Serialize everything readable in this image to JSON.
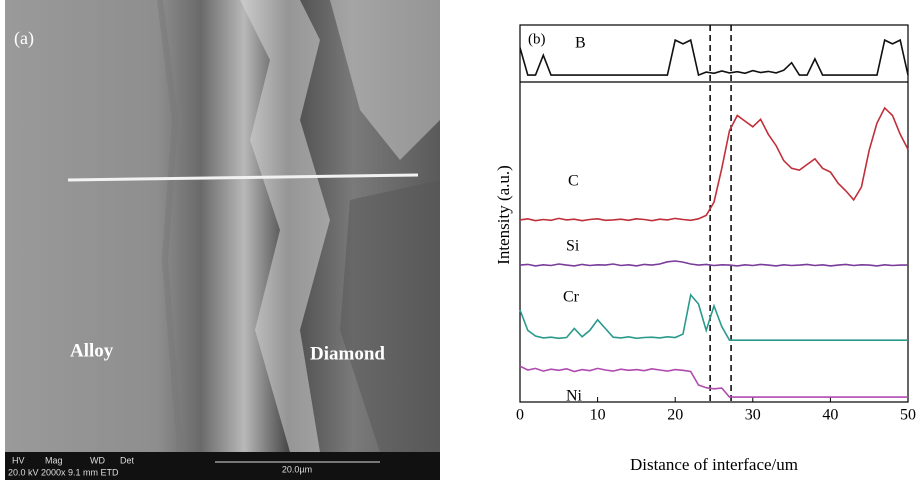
{
  "image": {
    "label": "(a)",
    "regions": [
      "Alloy",
      "Diamond"
    ],
    "info_bar": {
      "headers": [
        "HV",
        "Mag",
        "WD",
        "Det"
      ],
      "values": "20.0 kV 2000x 9.1 mm ETD",
      "scale": "20.0µm"
    }
  },
  "chart_data": {
    "type": "line",
    "panel_label": "(b)",
    "xlabel": "Distance of interface/um",
    "ylabel": "Intensity (a.u.)",
    "xlim": [
      0,
      50
    ],
    "xticks": [
      0,
      10,
      20,
      30,
      40,
      50
    ],
    "ylim": [
      0,
      100
    ],
    "vlines": [
      24.5,
      27.2
    ],
    "x": [
      0,
      1,
      2,
      3,
      4,
      5,
      6,
      7,
      8,
      9,
      10,
      11,
      12,
      13,
      14,
      15,
      16,
      17,
      18,
      19,
      20,
      21,
      22,
      23,
      24,
      25,
      26,
      27,
      28,
      29,
      30,
      31,
      32,
      33,
      34,
      35,
      36,
      37,
      38,
      39,
      40,
      41,
      42,
      43,
      44,
      45,
      46,
      47,
      48,
      49,
      50
    ],
    "series": [
      {
        "name": "B",
        "color": "#111111",
        "values": [
          94,
          86.7,
          86.7,
          92,
          86.7,
          86.7,
          86.7,
          86.7,
          86.7,
          86.7,
          86.7,
          86.7,
          86.7,
          86.7,
          86.7,
          86.7,
          86.7,
          86.7,
          86.7,
          86.7,
          96,
          95,
          96,
          86.7,
          87.5,
          87.2,
          87.8,
          87.3,
          87.6,
          87.2,
          87.9,
          87.4,
          87.7,
          87.3,
          88,
          90,
          86.7,
          86.7,
          91,
          86.7,
          86.7,
          86.7,
          86.7,
          86.7,
          86.7,
          86.7,
          86.7,
          96,
          95,
          96,
          86.7
        ]
      },
      {
        "name": "C",
        "color": "#c0303a",
        "values": [
          48.3,
          48.6,
          48.1,
          48.4,
          48.2,
          48.7,
          48.3,
          48.5,
          48.1,
          48.4,
          48.6,
          48.2,
          48.3,
          48.5,
          48.2,
          48.6,
          48.4,
          48.1,
          48.5,
          48.3,
          48.7,
          48.4,
          48.2,
          48.6,
          49.5,
          53,
          62,
          72,
          76,
          74.5,
          73,
          75,
          71,
          68,
          64,
          62,
          61.5,
          63,
          64.5,
          62,
          61,
          58,
          56,
          53.6,
          57,
          66.8,
          74,
          78,
          76,
          71,
          67
        ]
      },
      {
        "name": "Si",
        "color": "#7a3c9a",
        "values": [
          36.3,
          36.5,
          36.1,
          36.4,
          36.2,
          36.6,
          36.3,
          36.1,
          36.5,
          36.2,
          36.4,
          36.3,
          36.6,
          36.2,
          36.4,
          36.1,
          36.5,
          36.3,
          36.6,
          37.2,
          37.4,
          37.1,
          36.6,
          36.3,
          36.5,
          36.2,
          36.4,
          36.3,
          36.1,
          36.4,
          36.2,
          36.5,
          36.3,
          36.1,
          36.4,
          36.2,
          36.3,
          36.5,
          36.2,
          36.4,
          36.1,
          36.3,
          36.5,
          36.2,
          36.4,
          36.3,
          36.1,
          36.4,
          36.2,
          36.3,
          36.3
        ]
      },
      {
        "name": "Cr",
        "color": "#2a9a8c",
        "values": [
          24.4,
          19,
          17.5,
          17,
          17.2,
          16.9,
          17.1,
          19.5,
          17.3,
          19,
          21.8,
          19.5,
          17.2,
          17,
          17.3,
          16.9,
          17.1,
          17.2,
          17,
          17.3,
          17.1,
          18,
          28.4,
          26,
          19,
          25.5,
          20,
          16.4,
          16.4,
          16.4,
          16.4,
          16.4,
          16.4,
          16.4,
          16.4,
          16.4,
          16.4,
          16.4,
          16.4,
          16.4,
          16.4,
          16.4,
          16.4,
          16.4,
          16.4,
          16.4,
          16.4,
          16.4,
          16.4,
          16.4,
          16.4
        ]
      },
      {
        "name": "Ni",
        "color": "#b04ab0",
        "values": [
          9.5,
          8.5,
          8.9,
          8.2,
          8.7,
          8.4,
          8.8,
          8.1,
          8.6,
          8.3,
          8.9,
          8.5,
          8.2,
          8.7,
          8.4,
          8.6,
          8.3,
          8.8,
          8.5,
          8.2,
          8.6,
          8.4,
          8.1,
          4.5,
          3.8,
          3.5,
          3.7,
          1.3,
          1.3,
          1.3,
          1.3,
          1.3,
          1.3,
          1.3,
          1.3,
          1.3,
          1.3,
          1.3,
          1.3,
          1.3,
          1.3,
          1.3,
          1.3,
          1.3,
          1.3,
          1.3,
          1.3,
          1.3,
          1.3,
          1.3,
          1.3
        ]
      }
    ]
  }
}
